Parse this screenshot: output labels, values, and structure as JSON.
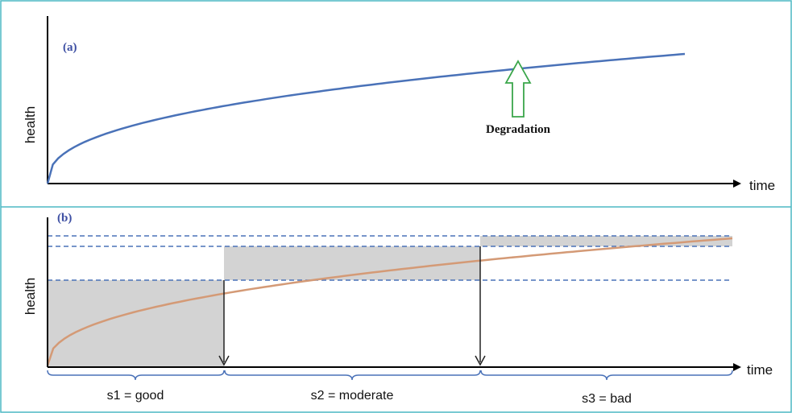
{
  "panel_a": {
    "label": "(a)",
    "ylabel": "health",
    "xlabel": "time",
    "annotation": "Degradation",
    "curve_color": "#4a72b8",
    "arrow_color": "#3aa64a"
  },
  "panel_b": {
    "label": "(b)",
    "ylabel": "health",
    "xlabel": "time",
    "curve_color": "#d49a76",
    "threshold_color": "#4a72b8",
    "shade_color": "#d3d3d3",
    "states": [
      {
        "label": "s1 = good"
      },
      {
        "label": "s2 = moderate"
      },
      {
        "label": "s3 = bad"
      }
    ]
  },
  "frame_color": "#4db8c4"
}
